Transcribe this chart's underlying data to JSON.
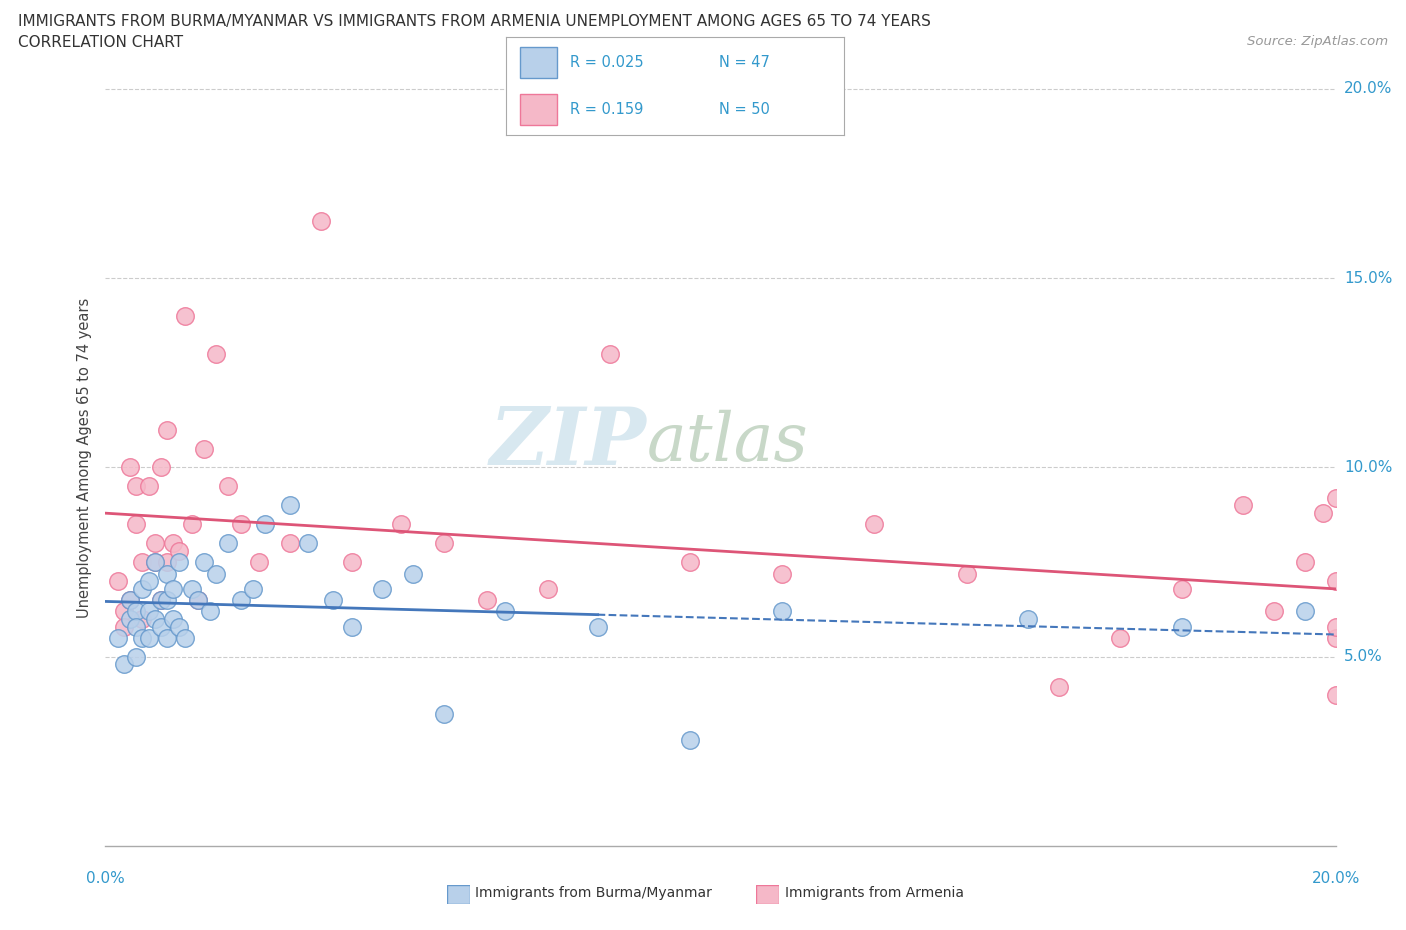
{
  "title_line1": "IMMIGRANTS FROM BURMA/MYANMAR VS IMMIGRANTS FROM ARMENIA UNEMPLOYMENT AMONG AGES 65 TO 74 YEARS",
  "title_line2": "CORRELATION CHART",
  "source": "Source: ZipAtlas.com",
  "ylabel": "Unemployment Among Ages 65 to 74 years",
  "xlim": [
    0.0,
    0.2
  ],
  "ylim": [
    0.0,
    0.205
  ],
  "yticks": [
    0.05,
    0.1,
    0.15,
    0.2
  ],
  "ytick_labels": [
    "5.0%",
    "10.0%",
    "15.0%",
    "20.0%"
  ],
  "watermark_zip": "ZIP",
  "watermark_atlas": "atlas",
  "color_burma": "#b8d0ea",
  "color_armenia": "#f5b8c8",
  "color_burma_edge": "#6699cc",
  "color_armenia_edge": "#ee7799",
  "color_burma_line": "#4477bb",
  "color_armenia_line": "#dd5577",
  "color_r_text": "#3399cc",
  "color_grid": "#cccccc",
  "color_axis": "#aaaaaa",
  "burma_x": [
    0.002,
    0.003,
    0.004,
    0.004,
    0.005,
    0.005,
    0.005,
    0.006,
    0.006,
    0.007,
    0.007,
    0.007,
    0.008,
    0.008,
    0.009,
    0.009,
    0.01,
    0.01,
    0.01,
    0.011,
    0.011,
    0.012,
    0.012,
    0.013,
    0.014,
    0.015,
    0.016,
    0.017,
    0.018,
    0.02,
    0.022,
    0.024,
    0.026,
    0.03,
    0.033,
    0.037,
    0.04,
    0.045,
    0.05,
    0.055,
    0.065,
    0.08,
    0.095,
    0.11,
    0.15,
    0.175,
    0.195
  ],
  "burma_y": [
    0.055,
    0.048,
    0.065,
    0.06,
    0.062,
    0.058,
    0.05,
    0.068,
    0.055,
    0.07,
    0.062,
    0.055,
    0.075,
    0.06,
    0.065,
    0.058,
    0.072,
    0.065,
    0.055,
    0.068,
    0.06,
    0.075,
    0.058,
    0.055,
    0.068,
    0.065,
    0.075,
    0.062,
    0.072,
    0.08,
    0.065,
    0.068,
    0.085,
    0.09,
    0.08,
    0.065,
    0.058,
    0.068,
    0.072,
    0.035,
    0.062,
    0.058,
    0.028,
    0.062,
    0.06,
    0.058,
    0.062
  ],
  "armenia_x": [
    0.002,
    0.003,
    0.003,
    0.004,
    0.004,
    0.005,
    0.005,
    0.006,
    0.006,
    0.007,
    0.008,
    0.008,
    0.009,
    0.009,
    0.01,
    0.01,
    0.011,
    0.012,
    0.013,
    0.014,
    0.015,
    0.016,
    0.018,
    0.02,
    0.022,
    0.025,
    0.03,
    0.035,
    0.04,
    0.048,
    0.055,
    0.062,
    0.072,
    0.082,
    0.095,
    0.11,
    0.125,
    0.14,
    0.155,
    0.165,
    0.175,
    0.185,
    0.19,
    0.195,
    0.198,
    0.2,
    0.2,
    0.2,
    0.2,
    0.2
  ],
  "armenia_y": [
    0.07,
    0.062,
    0.058,
    0.1,
    0.065,
    0.085,
    0.095,
    0.06,
    0.075,
    0.095,
    0.08,
    0.075,
    0.1,
    0.065,
    0.11,
    0.075,
    0.08,
    0.078,
    0.14,
    0.085,
    0.065,
    0.105,
    0.13,
    0.095,
    0.085,
    0.075,
    0.08,
    0.165,
    0.075,
    0.085,
    0.08,
    0.065,
    0.068,
    0.13,
    0.075,
    0.072,
    0.085,
    0.072,
    0.042,
    0.055,
    0.068,
    0.09,
    0.062,
    0.075,
    0.088,
    0.04,
    0.055,
    0.058,
    0.07,
    0.092
  ],
  "legend_r1": "R = 0.025",
  "legend_n1": "N = 47",
  "legend_r2": "R = 0.159",
  "legend_n2": "N = 50",
  "legend_label1": "Immigrants from Burma/Myanmar",
  "legend_label2": "Immigrants from Armenia"
}
